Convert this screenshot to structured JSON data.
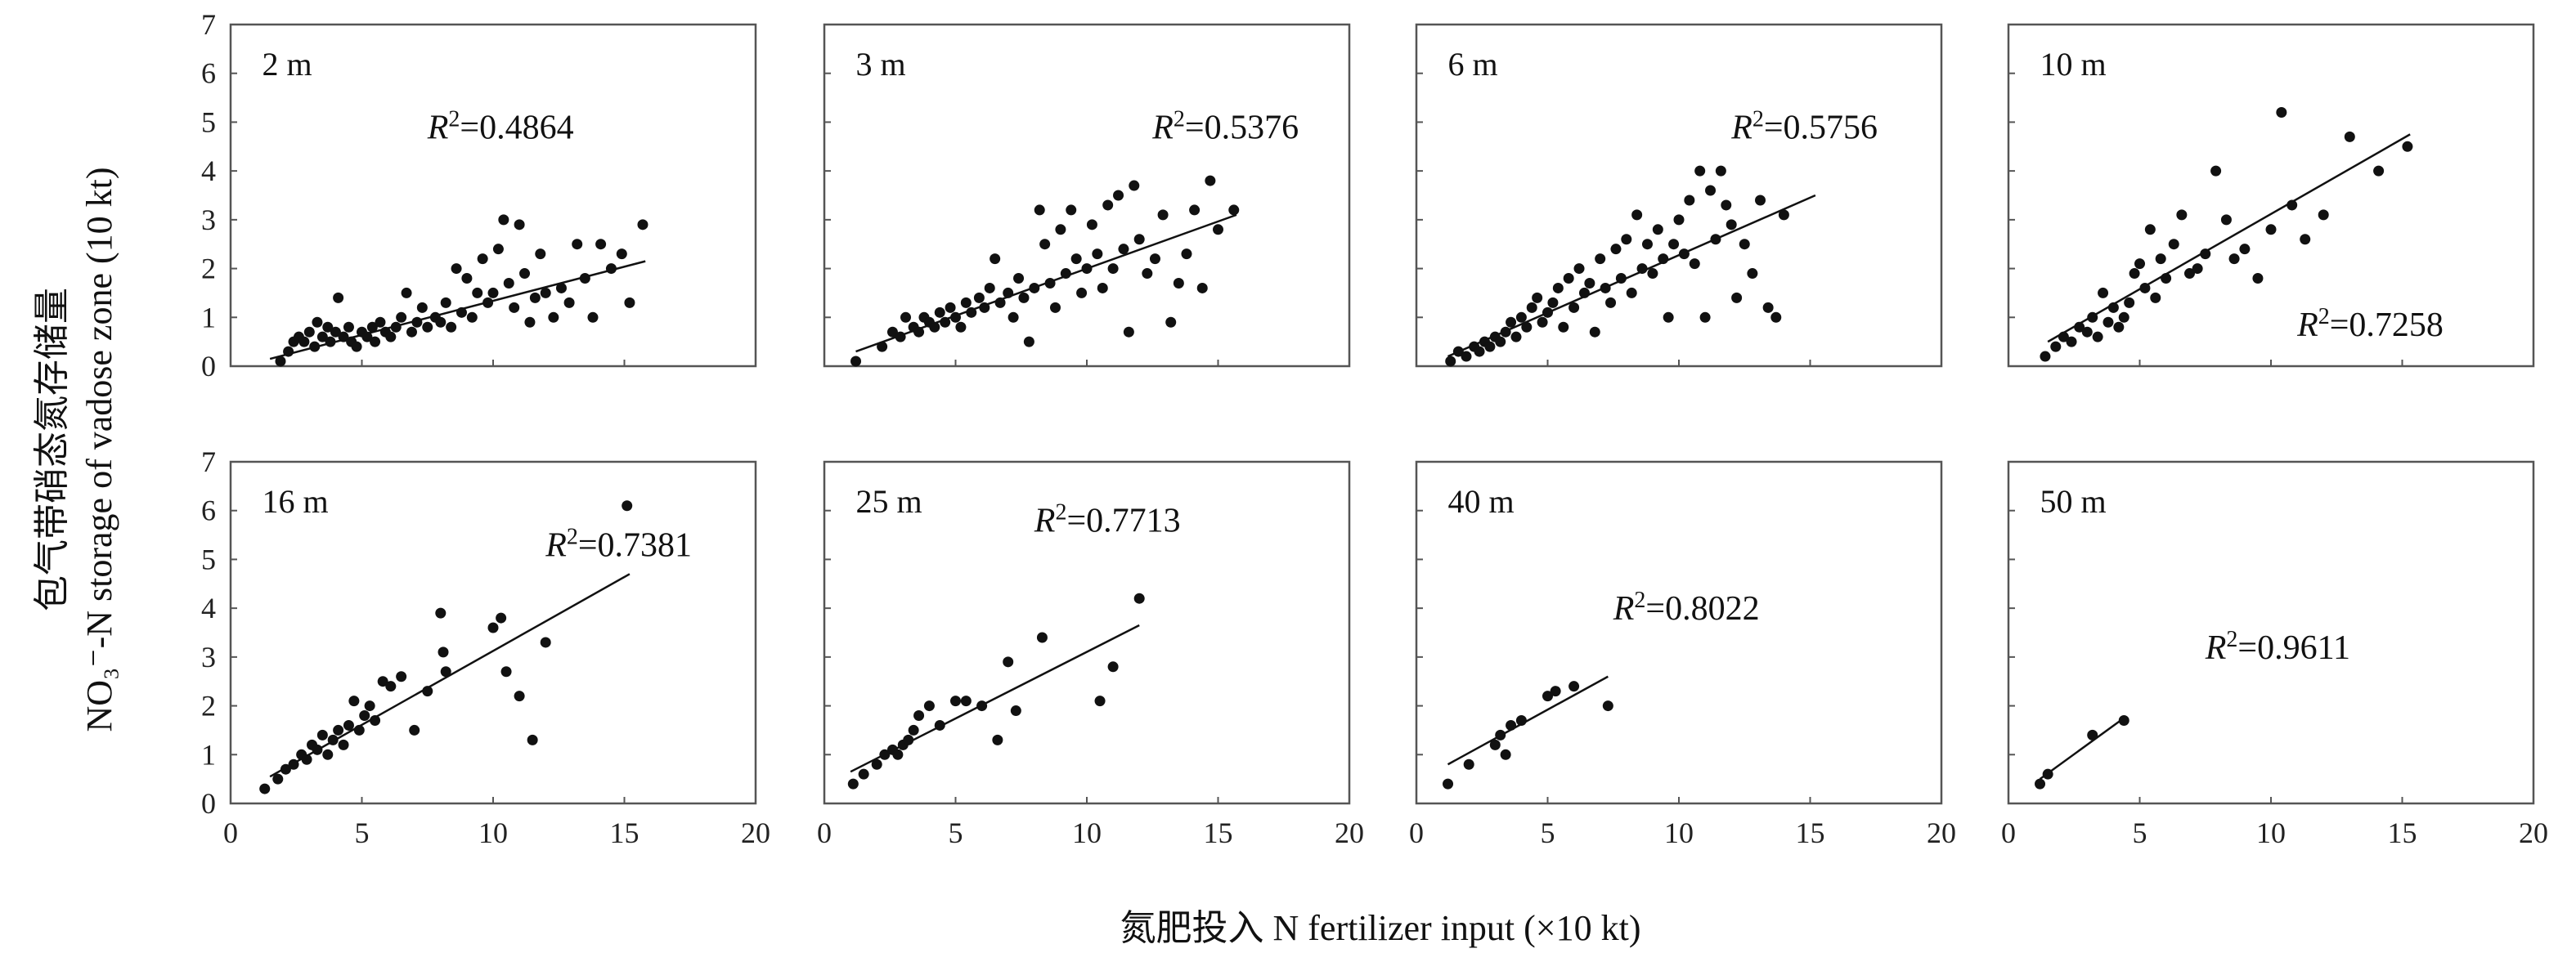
{
  "chart_data": {
    "type": "scatter",
    "ylabel_cn": "包气带硝态氮存储量",
    "ylabel_en": "NO₃⁻-N storage of vadose zone (10 kt)",
    "xlabel": "氮肥投入 N fertilizer input (×10 kt)",
    "xlim": [
      0,
      20
    ],
    "ylim": [
      0,
      7
    ],
    "xticks": [
      "0",
      "5",
      "10",
      "15",
      "20"
    ],
    "yticks": [
      "0",
      "1",
      "2",
      "3",
      "4",
      "5",
      "6",
      "7"
    ],
    "r2_prefix": "R²=",
    "panels": [
      {
        "label": "2 m",
        "r2": "0.4864",
        "fit": [
          [
            1.5,
            0.15
          ],
          [
            15.8,
            2.15
          ]
        ],
        "points": [
          [
            1.9,
            0.1
          ],
          [
            2.2,
            0.3
          ],
          [
            2.4,
            0.5
          ],
          [
            2.6,
            0.6
          ],
          [
            2.8,
            0.5
          ],
          [
            3.0,
            0.7
          ],
          [
            3.2,
            0.4
          ],
          [
            3.3,
            0.9
          ],
          [
            3.5,
            0.6
          ],
          [
            3.7,
            0.8
          ],
          [
            3.8,
            0.5
          ],
          [
            4.0,
            0.7
          ],
          [
            4.1,
            1.4
          ],
          [
            4.3,
            0.6
          ],
          [
            4.5,
            0.8
          ],
          [
            4.6,
            0.5
          ],
          [
            4.8,
            0.4
          ],
          [
            5.0,
            0.7
          ],
          [
            5.2,
            0.6
          ],
          [
            5.4,
            0.8
          ],
          [
            5.5,
            0.5
          ],
          [
            5.7,
            0.9
          ],
          [
            5.9,
            0.7
          ],
          [
            6.1,
            0.6
          ],
          [
            6.3,
            0.8
          ],
          [
            6.5,
            1.0
          ],
          [
            6.7,
            1.5
          ],
          [
            6.9,
            0.7
          ],
          [
            7.1,
            0.9
          ],
          [
            7.3,
            1.2
          ],
          [
            7.5,
            0.8
          ],
          [
            7.8,
            1.0
          ],
          [
            8.0,
            0.9
          ],
          [
            8.2,
            1.3
          ],
          [
            8.4,
            0.8
          ],
          [
            8.6,
            2.0
          ],
          [
            8.8,
            1.1
          ],
          [
            9.0,
            1.8
          ],
          [
            9.2,
            1.0
          ],
          [
            9.4,
            1.5
          ],
          [
            9.6,
            2.2
          ],
          [
            9.8,
            1.3
          ],
          [
            10.0,
            1.5
          ],
          [
            10.2,
            2.4
          ],
          [
            10.4,
            3.0
          ],
          [
            10.6,
            1.7
          ],
          [
            10.8,
            1.2
          ],
          [
            11.0,
            2.9
          ],
          [
            11.2,
            1.9
          ],
          [
            11.4,
            0.9
          ],
          [
            11.6,
            1.4
          ],
          [
            11.8,
            2.3
          ],
          [
            12.0,
            1.5
          ],
          [
            12.3,
            1.0
          ],
          [
            12.6,
            1.6
          ],
          [
            12.9,
            1.3
          ],
          [
            13.2,
            2.5
          ],
          [
            13.5,
            1.8
          ],
          [
            13.8,
            1.0
          ],
          [
            14.1,
            2.5
          ],
          [
            14.5,
            2.0
          ],
          [
            14.9,
            2.3
          ],
          [
            15.2,
            1.3
          ],
          [
            15.7,
            2.9
          ]
        ]
      },
      {
        "label": "3 m",
        "r2": "0.5376",
        "fit": [
          [
            1.2,
            0.3
          ],
          [
            15.7,
            3.1
          ]
        ],
        "points": [
          [
            1.2,
            0.1
          ],
          [
            2.2,
            0.4
          ],
          [
            2.6,
            0.7
          ],
          [
            2.9,
            0.6
          ],
          [
            3.1,
            1.0
          ],
          [
            3.4,
            0.8
          ],
          [
            3.6,
            0.7
          ],
          [
            3.8,
            1.0
          ],
          [
            4.0,
            0.9
          ],
          [
            4.2,
            0.8
          ],
          [
            4.4,
            1.1
          ],
          [
            4.6,
            0.9
          ],
          [
            4.8,
            1.2
          ],
          [
            5.0,
            1.0
          ],
          [
            5.2,
            0.8
          ],
          [
            5.4,
            1.3
          ],
          [
            5.6,
            1.1
          ],
          [
            5.9,
            1.4
          ],
          [
            6.1,
            1.2
          ],
          [
            6.3,
            1.6
          ],
          [
            6.5,
            2.2
          ],
          [
            6.7,
            1.3
          ],
          [
            7.0,
            1.5
          ],
          [
            7.2,
            1.0
          ],
          [
            7.4,
            1.8
          ],
          [
            7.6,
            1.4
          ],
          [
            7.8,
            0.5
          ],
          [
            8.0,
            1.6
          ],
          [
            8.2,
            3.2
          ],
          [
            8.4,
            2.5
          ],
          [
            8.6,
            1.7
          ],
          [
            8.8,
            1.2
          ],
          [
            9.0,
            2.8
          ],
          [
            9.2,
            1.9
          ],
          [
            9.4,
            3.2
          ],
          [
            9.6,
            2.2
          ],
          [
            9.8,
            1.5
          ],
          [
            10.0,
            2.0
          ],
          [
            10.2,
            2.9
          ],
          [
            10.4,
            2.3
          ],
          [
            10.6,
            1.6
          ],
          [
            10.8,
            3.3
          ],
          [
            11.0,
            2.0
          ],
          [
            11.2,
            3.5
          ],
          [
            11.4,
            2.4
          ],
          [
            11.6,
            0.7
          ],
          [
            11.8,
            3.7
          ],
          [
            12.0,
            2.6
          ],
          [
            12.3,
            1.9
          ],
          [
            12.6,
            2.2
          ],
          [
            12.9,
            3.1
          ],
          [
            13.2,
            0.9
          ],
          [
            13.5,
            1.7
          ],
          [
            13.8,
            2.3
          ],
          [
            14.1,
            3.2
          ],
          [
            14.4,
            1.6
          ],
          [
            14.7,
            3.8
          ],
          [
            15.0,
            2.8
          ],
          [
            15.6,
            3.2
          ]
        ]
      },
      {
        "label": "6 m",
        "r2": "0.5756",
        "fit": [
          [
            1.2,
            0.2
          ],
          [
            15.2,
            3.5
          ]
        ],
        "points": [
          [
            1.3,
            0.1
          ],
          [
            1.6,
            0.3
          ],
          [
            1.9,
            0.2
          ],
          [
            2.2,
            0.4
          ],
          [
            2.4,
            0.3
          ],
          [
            2.6,
            0.5
          ],
          [
            2.8,
            0.4
          ],
          [
            3.0,
            0.6
          ],
          [
            3.2,
            0.5
          ],
          [
            3.4,
            0.7
          ],
          [
            3.6,
            0.9
          ],
          [
            3.8,
            0.6
          ],
          [
            4.0,
            1.0
          ],
          [
            4.2,
            0.8
          ],
          [
            4.4,
            1.2
          ],
          [
            4.6,
            1.4
          ],
          [
            4.8,
            0.9
          ],
          [
            5.0,
            1.1
          ],
          [
            5.2,
            1.3
          ],
          [
            5.4,
            1.6
          ],
          [
            5.6,
            0.8
          ],
          [
            5.8,
            1.8
          ],
          [
            6.0,
            1.2
          ],
          [
            6.2,
            2.0
          ],
          [
            6.4,
            1.5
          ],
          [
            6.6,
            1.7
          ],
          [
            6.8,
            0.7
          ],
          [
            7.0,
            2.2
          ],
          [
            7.2,
            1.6
          ],
          [
            7.4,
            1.3
          ],
          [
            7.6,
            2.4
          ],
          [
            7.8,
            1.8
          ],
          [
            8.0,
            2.6
          ],
          [
            8.2,
            1.5
          ],
          [
            8.4,
            3.1
          ],
          [
            8.6,
            2.0
          ],
          [
            8.8,
            2.5
          ],
          [
            9.0,
            1.9
          ],
          [
            9.2,
            2.8
          ],
          [
            9.4,
            2.2
          ],
          [
            9.6,
            1.0
          ],
          [
            9.8,
            2.5
          ],
          [
            10.0,
            3.0
          ],
          [
            10.2,
            2.3
          ],
          [
            10.4,
            3.4
          ],
          [
            10.6,
            2.1
          ],
          [
            10.8,
            4.0
          ],
          [
            11.0,
            1.0
          ],
          [
            11.2,
            3.6
          ],
          [
            11.4,
            2.6
          ],
          [
            11.6,
            4.0
          ],
          [
            11.8,
            3.3
          ],
          [
            12.0,
            2.9
          ],
          [
            12.2,
            1.4
          ],
          [
            12.5,
            2.5
          ],
          [
            12.8,
            1.9
          ],
          [
            13.1,
            3.4
          ],
          [
            13.4,
            1.2
          ],
          [
            13.7,
            1.0
          ],
          [
            14.0,
            3.1
          ]
        ]
      },
      {
        "label": "10 m",
        "r2": "0.7258",
        "fit": [
          [
            1.5,
            0.5
          ],
          [
            15.3,
            4.75
          ]
        ],
        "points": [
          [
            1.4,
            0.2
          ],
          [
            1.8,
            0.4
          ],
          [
            2.1,
            0.6
          ],
          [
            2.4,
            0.5
          ],
          [
            2.7,
            0.8
          ],
          [
            3.0,
            0.7
          ],
          [
            3.2,
            1.0
          ],
          [
            3.4,
            0.6
          ],
          [
            3.6,
            1.5
          ],
          [
            3.8,
            0.9
          ],
          [
            4.0,
            1.2
          ],
          [
            4.2,
            0.8
          ],
          [
            4.4,
            1.0
          ],
          [
            4.6,
            1.3
          ],
          [
            4.8,
            1.9
          ],
          [
            5.0,
            2.1
          ],
          [
            5.2,
            1.6
          ],
          [
            5.4,
            2.8
          ],
          [
            5.6,
            1.4
          ],
          [
            5.8,
            2.2
          ],
          [
            6.0,
            1.8
          ],
          [
            6.3,
            2.5
          ],
          [
            6.6,
            3.1
          ],
          [
            6.9,
            1.9
          ],
          [
            7.2,
            2.0
          ],
          [
            7.5,
            2.3
          ],
          [
            7.9,
            4.0
          ],
          [
            8.3,
            3.0
          ],
          [
            8.6,
            2.2
          ],
          [
            9.0,
            2.4
          ],
          [
            9.5,
            1.8
          ],
          [
            10.0,
            2.8
          ],
          [
            10.4,
            5.2
          ],
          [
            10.8,
            3.3
          ],
          [
            11.3,
            2.6
          ],
          [
            12.0,
            3.1
          ],
          [
            13.0,
            4.7
          ],
          [
            14.1,
            4.0
          ],
          [
            15.2,
            4.5
          ]
        ]
      },
      {
        "label": "16 m",
        "r2": "0.7381",
        "fit": [
          [
            1.5,
            0.55
          ],
          [
            15.2,
            4.7
          ]
        ],
        "points": [
          [
            1.3,
            0.3
          ],
          [
            1.8,
            0.5
          ],
          [
            2.1,
            0.7
          ],
          [
            2.4,
            0.8
          ],
          [
            2.7,
            1.0
          ],
          [
            2.9,
            0.9
          ],
          [
            3.1,
            1.2
          ],
          [
            3.3,
            1.1
          ],
          [
            3.5,
            1.4
          ],
          [
            3.7,
            1.0
          ],
          [
            3.9,
            1.3
          ],
          [
            4.1,
            1.5
          ],
          [
            4.3,
            1.2
          ],
          [
            4.5,
            1.6
          ],
          [
            4.7,
            2.1
          ],
          [
            4.9,
            1.5
          ],
          [
            5.1,
            1.8
          ],
          [
            5.3,
            2.0
          ],
          [
            5.5,
            1.7
          ],
          [
            5.8,
            2.5
          ],
          [
            6.1,
            2.4
          ],
          [
            6.5,
            2.6
          ],
          [
            7.0,
            1.5
          ],
          [
            7.5,
            2.3
          ],
          [
            8.0,
            3.9
          ],
          [
            8.1,
            3.1
          ],
          [
            8.2,
            2.7
          ],
          [
            10.0,
            3.6
          ],
          [
            10.3,
            3.8
          ],
          [
            10.5,
            2.7
          ],
          [
            11.0,
            2.2
          ],
          [
            11.5,
            1.3
          ],
          [
            12.0,
            3.3
          ],
          [
            15.1,
            6.1
          ]
        ]
      },
      {
        "label": "25 m",
        "r2": "0.7713",
        "fit": [
          [
            1.0,
            0.65
          ],
          [
            12.0,
            3.65
          ]
        ],
        "points": [
          [
            1.1,
            0.4
          ],
          [
            1.5,
            0.6
          ],
          [
            2.0,
            0.8
          ],
          [
            2.3,
            1.0
          ],
          [
            2.6,
            1.1
          ],
          [
            2.8,
            1.0
          ],
          [
            3.0,
            1.2
          ],
          [
            3.2,
            1.3
          ],
          [
            3.4,
            1.5
          ],
          [
            3.6,
            1.8
          ],
          [
            4.0,
            2.0
          ],
          [
            4.4,
            1.6
          ],
          [
            5.0,
            2.1
          ],
          [
            5.4,
            2.1
          ],
          [
            6.0,
            2.0
          ],
          [
            6.6,
            1.3
          ],
          [
            7.0,
            2.9
          ],
          [
            7.3,
            1.9
          ],
          [
            8.3,
            3.4
          ],
          [
            10.5,
            2.1
          ],
          [
            11.0,
            2.8
          ],
          [
            12.0,
            4.2
          ]
        ]
      },
      {
        "label": "40 m",
        "r2": "0.8022",
        "fit": [
          [
            1.2,
            0.8
          ],
          [
            7.3,
            2.6
          ]
        ],
        "points": [
          [
            1.2,
            0.4
          ],
          [
            2.0,
            0.8
          ],
          [
            3.0,
            1.2
          ],
          [
            3.2,
            1.4
          ],
          [
            3.4,
            1.0
          ],
          [
            3.6,
            1.6
          ],
          [
            4.0,
            1.7
          ],
          [
            5.0,
            2.2
          ],
          [
            5.3,
            2.3
          ],
          [
            6.0,
            2.4
          ],
          [
            7.3,
            2.0
          ]
        ]
      },
      {
        "label": "50 m",
        "r2": "0.9611",
        "fit": [
          [
            1.2,
            0.5
          ],
          [
            4.4,
            1.75
          ]
        ],
        "points": [
          [
            1.2,
            0.4
          ],
          [
            1.5,
            0.6
          ],
          [
            3.2,
            1.4
          ],
          [
            4.4,
            1.7
          ]
        ]
      }
    ]
  }
}
